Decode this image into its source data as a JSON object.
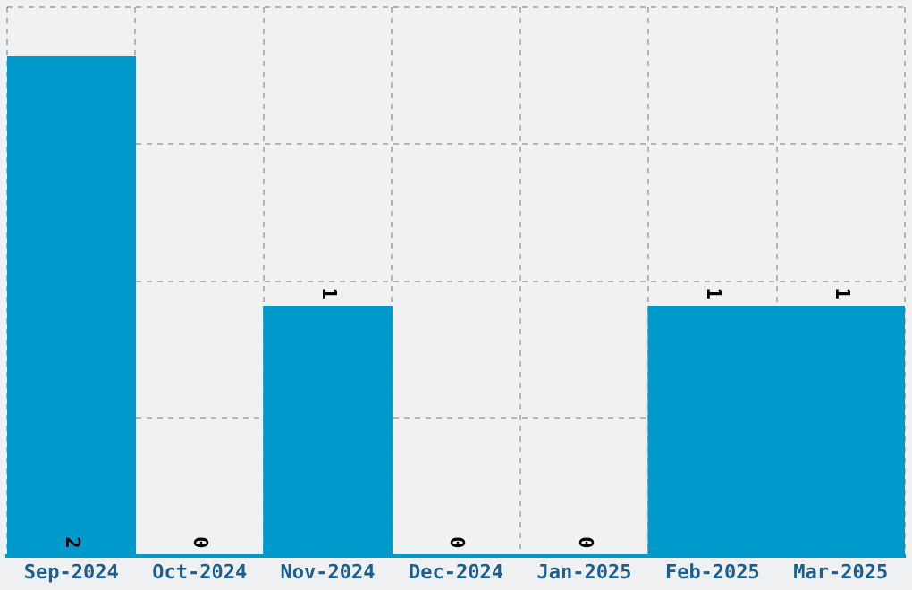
{
  "chart_data": {
    "type": "bar",
    "categories": [
      "Sep-2024",
      "Oct-2024",
      "Nov-2024",
      "Dec-2024",
      "Jan-2025",
      "Feb-2025",
      "Mar-2025"
    ],
    "values": [
      2,
      0,
      1,
      0,
      0,
      1,
      1
    ],
    "color": "#0099cc",
    "ylim": [
      0,
      2.2
    ],
    "tick_labels": "x",
    "grid": true,
    "data_labels": true
  }
}
